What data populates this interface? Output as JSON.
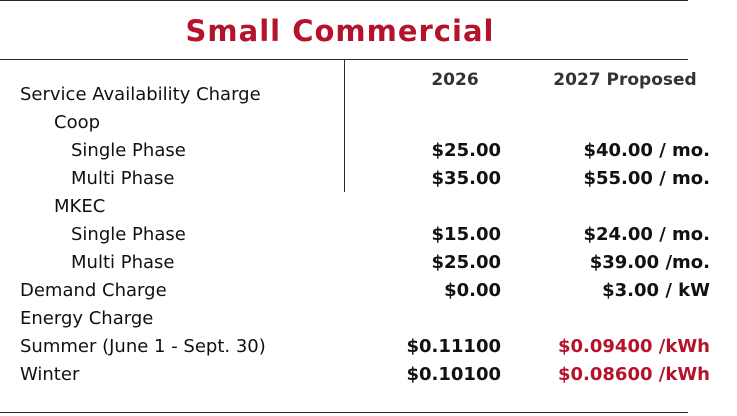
{
  "title": "Small Commercial",
  "columns": {
    "col_2026": "2026",
    "col_2027": "2027 Proposed"
  },
  "rows": [
    {
      "label": "Service Availability Charge",
      "v2026": "",
      "v2027": ""
    },
    {
      "label": "Coop",
      "v2026": "",
      "v2027": ""
    },
    {
      "label": "Single Phase",
      "v2026": "$25.00",
      "v2027": "$40.00 / mo."
    },
    {
      "label": "Multi Phase",
      "v2026": "$35.00",
      "v2027": "$55.00 / mo."
    },
    {
      "label": "MKEC",
      "v2026": "",
      "v2027": ""
    },
    {
      "label": "Single Phase",
      "v2026": "$15.00",
      "v2027": "$24.00 / mo."
    },
    {
      "label": "Multi Phase",
      "v2026": "$25.00",
      "v2027": "$39.00 /mo."
    },
    {
      "label": "Demand Charge",
      "v2026": "$0.00",
      "v2027": "$3.00 / kW"
    },
    {
      "label": "Energy Charge",
      "v2026": "",
      "v2027": ""
    },
    {
      "label": "Summer (June 1 - Sept. 30)",
      "v2026": "$0.11100",
      "v2027": "$0.09400 /kWh"
    },
    {
      "label": "Winter",
      "v2026": "$0.10100",
      "v2027": "$0.08600 /kWh"
    }
  ],
  "colors": {
    "accent": "#b5132b",
    "text": "#111111"
  }
}
